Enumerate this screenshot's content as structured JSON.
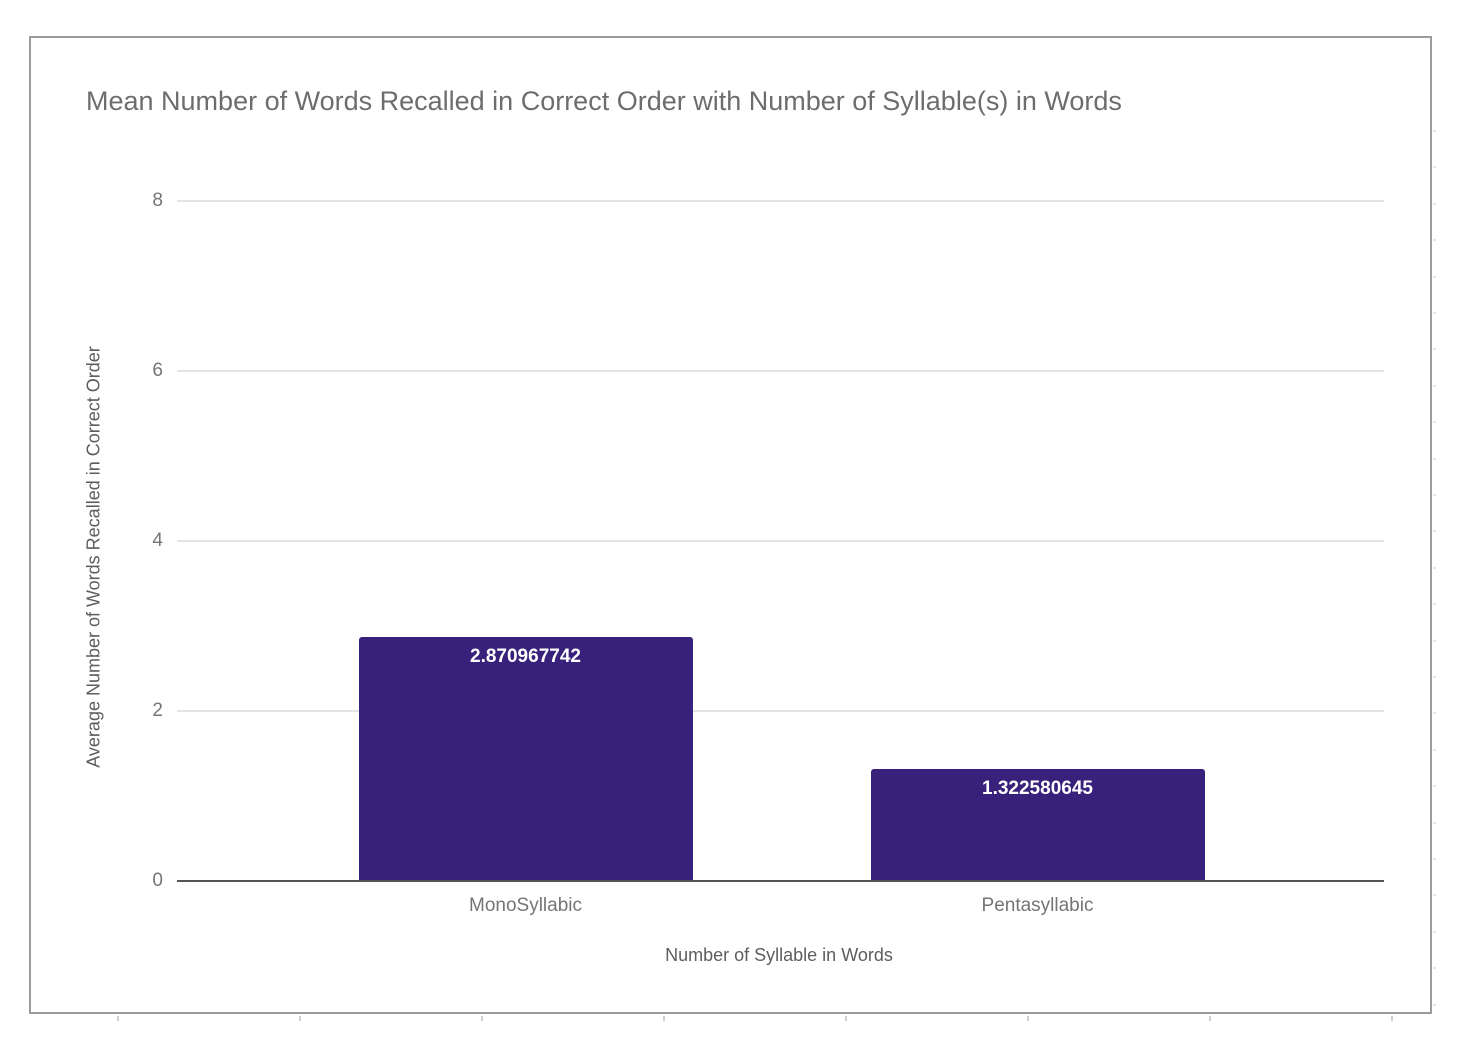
{
  "chart_data": {
    "type": "bar",
    "title": "Mean Number of Words Recalled in Correct Order with Number of Syllable(s) in Words",
    "xlabel": "Number of Syllable in Words",
    "ylabel": "Average Number of Words Recalled in Correct Order",
    "categories": [
      "MonoSyllabic",
      "Pentasyllabic"
    ],
    "values": [
      2.870967742,
      1.322580645
    ],
    "value_labels": [
      "2.870967742",
      "1.322580645"
    ],
    "ylim": [
      0,
      8
    ],
    "yticks": [
      0,
      2,
      4,
      6,
      8
    ],
    "grid": true,
    "legend_position": "none",
    "bar_color": "#38217a",
    "value_label_color": "#ffffff"
  },
  "styles": {
    "title_color": "#6d6d6d",
    "axis_tick_color": "#757575",
    "axis_title_color": "#5d5d5d",
    "gridline_color": "#e4e4e4",
    "baseline_color": "#555555",
    "card_border_color": "#9c9c9c",
    "sheet_gridline_color": "#cfcfcf",
    "background": "#ffffff"
  }
}
